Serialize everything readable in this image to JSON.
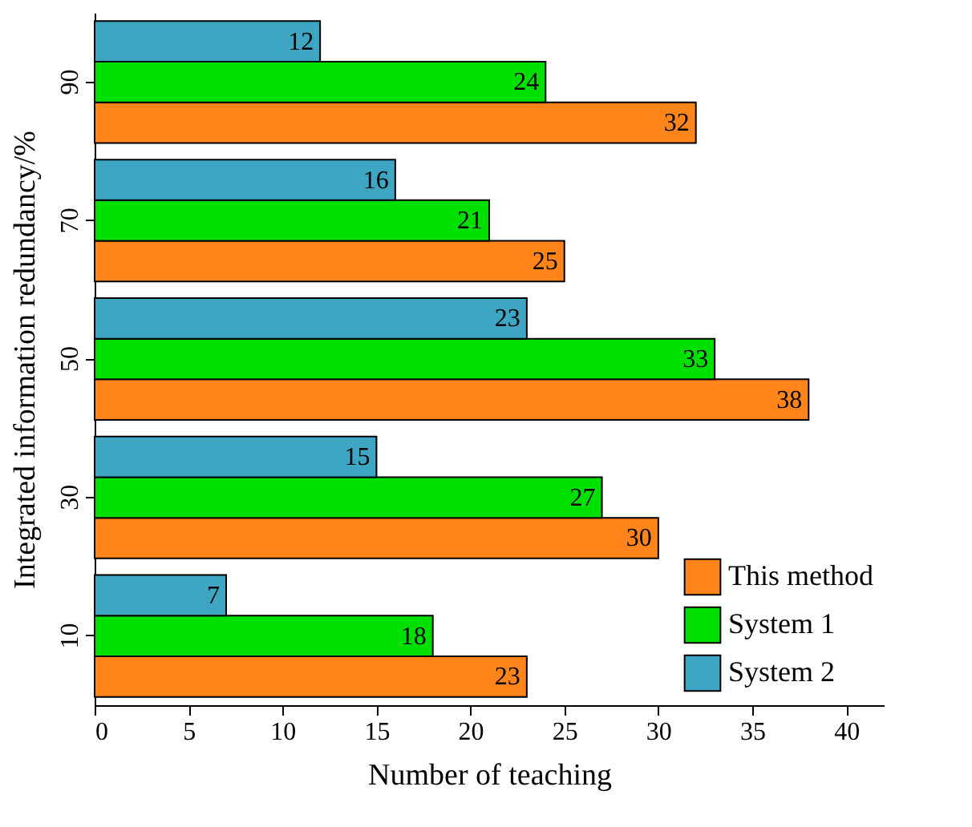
{
  "chart_data": {
    "type": "bar",
    "orientation": "horizontal",
    "xlabel": "Number of teaching",
    "ylabel": "Integrated information redundancy/%",
    "categories": [
      "90",
      "70",
      "50",
      "30",
      "10"
    ],
    "series": [
      {
        "name": "This method",
        "color": "#ff8419",
        "values": [
          32,
          25,
          38,
          30,
          23
        ]
      },
      {
        "name": "System 1",
        "color": "#00e000",
        "values": [
          24,
          21,
          33,
          27,
          18
        ]
      },
      {
        "name": "System 2",
        "color": "#3ea6c2",
        "values": [
          12,
          16,
          23,
          15,
          7
        ]
      }
    ],
    "xlim": [
      0,
      42
    ],
    "xticks": [
      0,
      5,
      10,
      15,
      20,
      25,
      30,
      35,
      40
    ],
    "data_labels": true,
    "grid": false,
    "legend": "bottom right"
  }
}
